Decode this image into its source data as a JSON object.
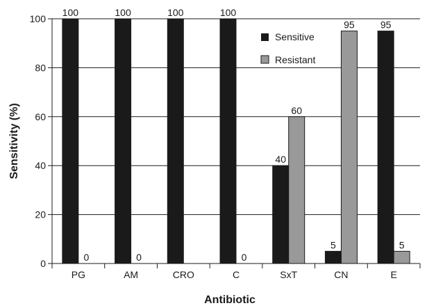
{
  "chart_data": {
    "type": "bar",
    "categories": [
      "PG",
      "AM",
      "CRO",
      "C",
      "SxT",
      "CN",
      "E"
    ],
    "series": [
      {
        "name": "Sensitive",
        "values": [
          100,
          100,
          100,
          100,
          40,
          5,
          95
        ],
        "color": "#1a1a1a"
      },
      {
        "name": "Resistant",
        "values": [
          0,
          0,
          null,
          0,
          60,
          95,
          5
        ],
        "color": "#999999"
      }
    ],
    "data_labels": [
      [
        "100",
        "100",
        "100",
        "100",
        "40",
        "5",
        "95"
      ],
      [
        "0",
        "0",
        "",
        "0",
        "60",
        "95",
        "5"
      ]
    ],
    "xlabel": "Antibiotic",
    "ylabel": "Sensitivity (%)",
    "ylim": [
      0,
      100
    ],
    "yticks": [
      0,
      20,
      40,
      60,
      80,
      100
    ],
    "grid": true,
    "legend": "top-right"
  }
}
